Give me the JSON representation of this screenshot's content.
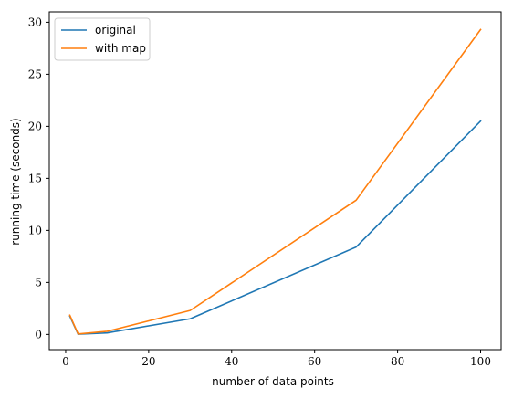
{
  "chart_data": {
    "type": "line",
    "title": "",
    "xlabel": "number of data points",
    "ylabel": "running time (seconds)",
    "xlim": [
      -3.95,
      104.95
    ],
    "ylim": [
      -1.46,
      31.0
    ],
    "xticks": [
      0,
      20,
      40,
      60,
      80,
      100
    ],
    "yticks": [
      0,
      5,
      10,
      15,
      20,
      25,
      30
    ],
    "grid": false,
    "legend_position": "upper-left",
    "series": [
      {
        "name": "original",
        "color": "#1f77b4",
        "x": [
          1,
          3,
          10,
          30,
          70,
          100
        ],
        "y": [
          1.75,
          0.02,
          0.15,
          1.5,
          8.4,
          20.5
        ]
      },
      {
        "name": "with map",
        "color": "#ff7f0e",
        "x": [
          1,
          3,
          10,
          30,
          70,
          100
        ],
        "y": [
          1.85,
          0.05,
          0.3,
          2.3,
          12.9,
          29.3
        ]
      }
    ]
  }
}
